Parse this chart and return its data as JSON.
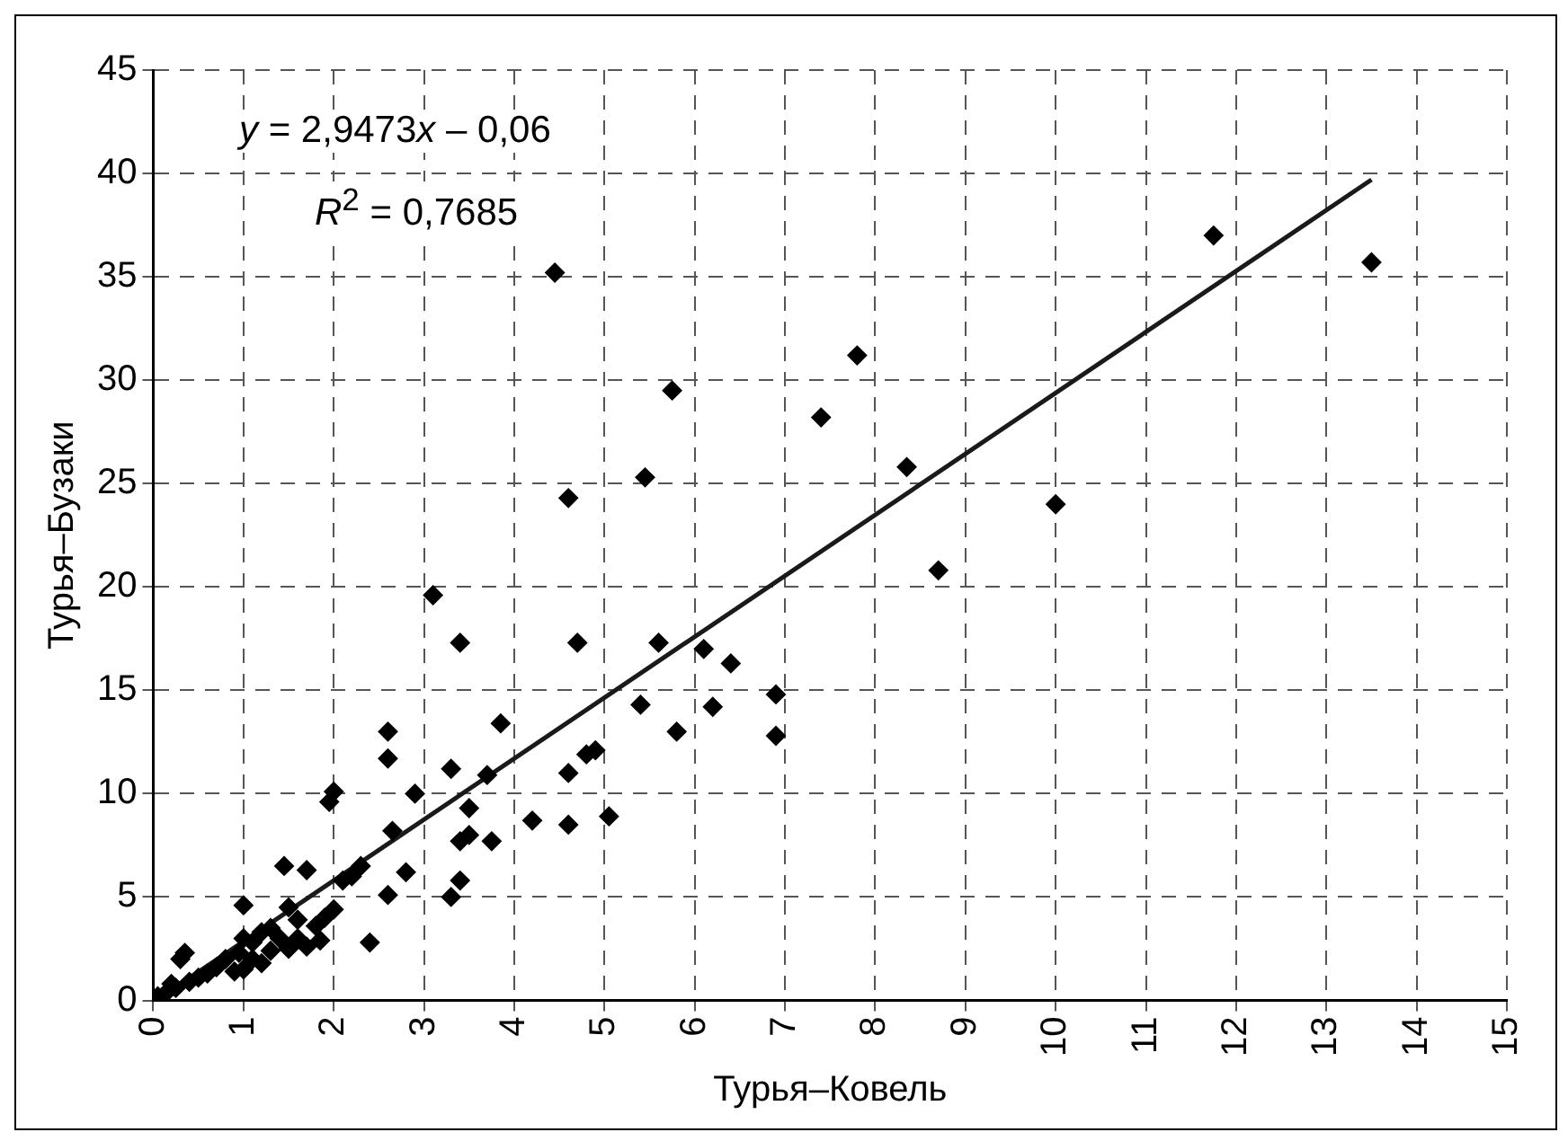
{
  "chart_data": {
    "type": "scatter",
    "xlabel": "Турья–Ковель",
    "ylabel": "Турья–Бузаки",
    "xlim": [
      0,
      15
    ],
    "ylim": [
      0,
      45
    ],
    "xticks": [
      0,
      1,
      2,
      3,
      4,
      5,
      6,
      7,
      8,
      9,
      10,
      11,
      12,
      13,
      14,
      15
    ],
    "yticks": [
      0,
      5,
      10,
      15,
      20,
      25,
      30,
      35,
      40,
      45
    ],
    "grid": true,
    "legend": false,
    "marker": "diamond",
    "annotations": [
      "y = 2,9473x – 0,06",
      "R$^{2}$ = 0,7685"
    ],
    "series": [
      {
        "color": "#000000",
        "x": [
          11.75,
          13.5,
          4.45,
          7.8,
          5.75,
          7.4,
          8.35,
          5.45,
          4.6,
          10,
          8.7,
          3.1,
          3.4,
          4.7,
          5.6,
          6.1,
          6.4,
          6.9,
          5.4,
          6.2,
          3.85,
          5.8,
          6.9,
          2.6,
          4.9,
          4.8,
          2.6,
          3.3,
          4.6,
          3.7,
          2,
          1.95,
          2.9,
          3.5,
          5.05,
          4.2,
          4.6,
          3.5,
          3.4,
          3.75,
          2.65,
          2.3,
          2.8,
          1.45,
          1.7,
          3.4,
          3.3,
          2.6,
          2.4,
          1.0,
          2.2,
          2.1,
          2.0,
          1.9,
          1.8,
          1.5,
          1.4,
          1.6,
          1.5,
          1.7,
          1.2,
          1.3,
          1.1,
          1.0,
          0.9,
          1.1,
          1.0,
          1.2,
          0.8,
          0.7,
          0.6,
          0.5,
          0.4,
          0.35,
          0.3,
          0.2,
          0.15,
          0.05,
          0.25,
          1.3,
          1.6,
          1.85,
          0.95
        ],
        "values": [
          37,
          35.7,
          35.2,
          31.2,
          29.5,
          28.2,
          25.8,
          25.3,
          24.3,
          24,
          20.8,
          19.6,
          17.3,
          17.3,
          17.3,
          17,
          16.3,
          14.8,
          14.3,
          14.2,
          13.4,
          13,
          12.8,
          13,
          12.1,
          11.9,
          11.7,
          11.2,
          11,
          10.9,
          10.1,
          9.6,
          10,
          9.3,
          8.9,
          8.7,
          8.5,
          8,
          7.7,
          7.7,
          8.2,
          6.5,
          6.2,
          6.5,
          6.3,
          5.8,
          5,
          5.1,
          2.8,
          4.6,
          6,
          5.8,
          4.4,
          4,
          3.6,
          4.5,
          3,
          3,
          2.5,
          2.6,
          3.3,
          2.4,
          2,
          1.5,
          1.4,
          2.8,
          3,
          1.8,
          2,
          1.6,
          1.3,
          1.1,
          0.9,
          2.3,
          2,
          0.8,
          0.4,
          0.2,
          0.6,
          3.5,
          3.9,
          2.9,
          2.3
        ]
      },
      {
        "type": "line",
        "color": "#1a1a1a",
        "marker": "none",
        "line_style": "solid",
        "x": [
          0.1,
          13.5
        ],
        "values": [
          0.2,
          39.7
        ]
      }
    ]
  }
}
